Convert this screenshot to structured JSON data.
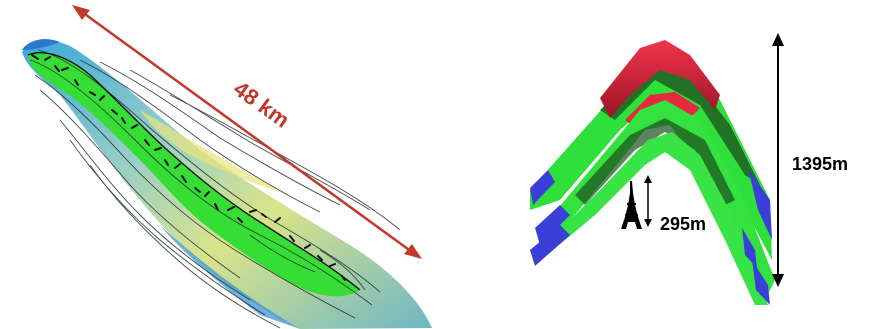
{
  "left_figure": {
    "distance_label": "48 km",
    "colors": {
      "arrow": "#c0392b",
      "low_area": "#2e9fd8",
      "mid_area": "#9cc9c4",
      "high_area": "#e6e07a",
      "crest_area": "#33dd33",
      "contour": "#1f2d2d"
    }
  },
  "right_figure": {
    "height_label": "1395m",
    "scale_label": "295m",
    "scale_icon": "eiffel-tower-icon",
    "colors": {
      "arrow": "#000000",
      "top_layer": "#e8283f",
      "middle_layer": "#2fe03a",
      "base_layer": "#3a3fd8",
      "shadow": "#1d4d1d"
    }
  }
}
